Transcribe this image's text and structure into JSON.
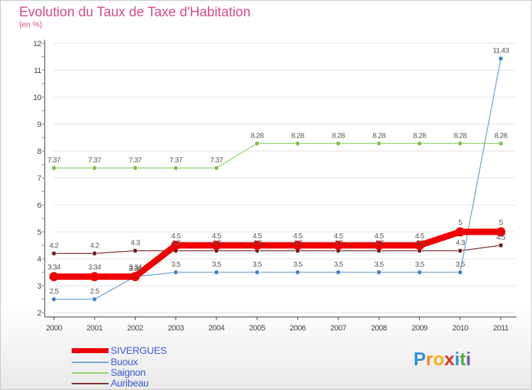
{
  "chart_data": {
    "type": "line",
    "title": "Evolution du Taux de Taxe d'Habitation",
    "subtitle": "(en %)",
    "xlabel": "",
    "ylabel": "",
    "ylim": [
      2,
      12
    ],
    "yticks": [
      "2",
      "3",
      "4",
      "5",
      "6",
      "7",
      "8",
      "9",
      "10",
      "11",
      "12"
    ],
    "categories": [
      "2000",
      "2001",
      "2002",
      "2003",
      "2004",
      "2005",
      "2006",
      "2007",
      "2008",
      "2009",
      "2010",
      "2011"
    ],
    "series": [
      {
        "name": "Saignon",
        "color": "#8fd36b",
        "point_color": "#7cc24f",
        "values": [
          7.37,
          7.37,
          7.37,
          7.37,
          7.37,
          8.28,
          8.28,
          8.28,
          8.28,
          8.28,
          8.28,
          8.28
        ],
        "labels": [
          "7.37",
          "7.37",
          "7.37",
          "7.37",
          "7.37",
          "8.28",
          "8.28",
          "8.28",
          "8.28",
          "8.28",
          "8.28",
          "8.28"
        ]
      },
      {
        "name": "Auribeau",
        "color": "#7a2e2e",
        "point_color": "#6a2020",
        "values": [
          4.2,
          4.2,
          4.3,
          4.3,
          4.3,
          4.3,
          4.3,
          4.3,
          4.3,
          4.3,
          4.3,
          4.5
        ],
        "labels": [
          "4.2",
          "4.2",
          "4.3",
          "4.3",
          "4.3",
          "4.3",
          "4.3",
          "4.3",
          "4.3",
          "4.3",
          "4.3",
          "4.5"
        ]
      },
      {
        "name": "Buoux",
        "color": "#6fa4d4",
        "point_color": "#3f82c4",
        "values": [
          2.5,
          2.5,
          3.34,
          3.5,
          3.5,
          3.5,
          3.5,
          3.5,
          3.5,
          3.5,
          3.5,
          11.43
        ],
        "labels": [
          "2.5",
          "2.5",
          "3.34",
          "3.5",
          "3.5",
          "3.5",
          "3.5",
          "3.5",
          "3.5",
          "3.5",
          "3.5",
          "11.43"
        ]
      },
      {
        "name": "SIVERGUES",
        "color": "#ee0000",
        "point_color": "#ee0000",
        "values": [
          3.34,
          3.34,
          3.34,
          4.5,
          4.5,
          4.5,
          4.5,
          4.5,
          4.5,
          4.5,
          5,
          5
        ],
        "labels": [
          "3.34",
          "3.34",
          "3.34",
          "4.5",
          "4.5",
          "4.5",
          "4.5",
          "4.5",
          "4.5",
          "4.5",
          "5",
          "5"
        ]
      }
    ],
    "legend": [
      "SIVERGUES",
      "Buoux",
      "Saignon",
      "Auribeau"
    ],
    "legend_colors": [
      "#ee0000",
      "#6fa4d4",
      "#8fd36b",
      "#7a2e2e"
    ],
    "legend_position": "bottom-left"
  },
  "logo": {
    "letters": [
      "P",
      "r",
      "o",
      "x",
      "i",
      "t",
      "i"
    ],
    "colors": [
      "#2e8fd8",
      "#f08a1c",
      "#f0b21c",
      "#d8322c",
      "#2e8fd8",
      "#4cae3f",
      "#7d4cb0"
    ]
  }
}
